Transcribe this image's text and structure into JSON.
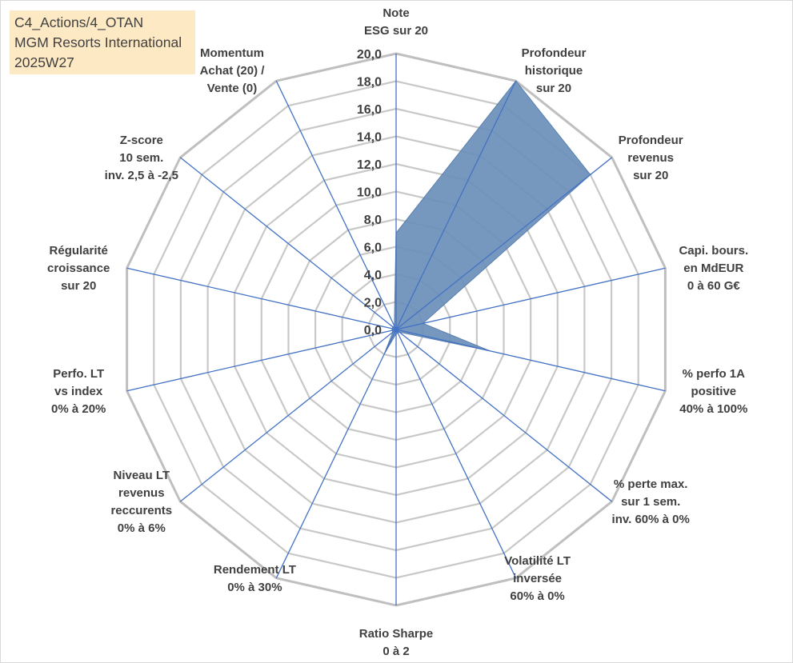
{
  "title_lines": [
    "C4_Actions/4_OTAN",
    "MGM Resorts International",
    "2025W27"
  ],
  "chart_data": {
    "type": "radar",
    "r_min": 0,
    "r_max": 20,
    "ticks": [
      "0,0",
      "2,0",
      "4,0",
      "6,0",
      "8,0",
      "10,0",
      "12,0",
      "14,0",
      "16,0",
      "18,0",
      "20,0"
    ],
    "categories": [
      [
        "Note",
        "ESG sur 20"
      ],
      [
        "Profondeur",
        "historique",
        "sur 20"
      ],
      [
        "Profondeur",
        "revenus",
        "sur 20"
      ],
      [
        "Capi. bours.",
        "en MdEUR",
        "0 à 60 G€"
      ],
      [
        "% perfo 1A",
        "positive",
        "40% à 100%"
      ],
      [
        "% perte max.",
        "sur 1 sem.",
        "inv. 60% à 0%"
      ],
      [
        "Volatilité LT",
        "inversée",
        "60% à 0%"
      ],
      [
        "Ratio Sharpe",
        "0 à 2"
      ],
      [
        "Rendement LT",
        "0% à 30%"
      ],
      [
        "Niveau LT",
        "revenus",
        "reccurents",
        "0% à 6%"
      ],
      [
        "Perfo. LT",
        "vs index",
        "0% à 20%"
      ],
      [
        "Régularité",
        "croissance",
        "sur 20"
      ],
      [
        "Z-score",
        "10 sem.",
        "inv. 2,5 à -2,5"
      ],
      [
        "Momentum",
        "Achat (20) /",
        "Vente (0)"
      ]
    ],
    "values": [
      7,
      20,
      18,
      2,
      7,
      0.3,
      0.3,
      0.3,
      2,
      0.3,
      0.3,
      0.3,
      0.3,
      0.3
    ],
    "grid": true,
    "fill_color": "#6a8fb8",
    "spoke_color": "#4472c4",
    "grid_color": "#c8c8c8",
    "outer_color": "#bfbfbf"
  }
}
